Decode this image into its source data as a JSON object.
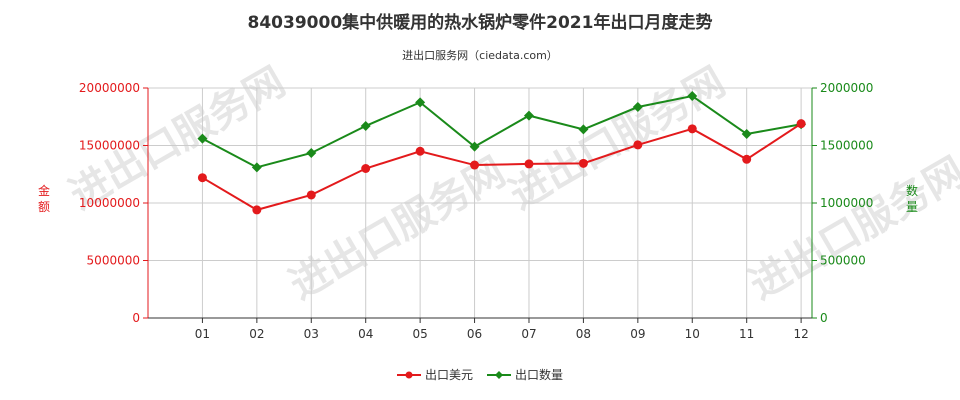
{
  "title": "84039000集中供暖用的热水锅炉零件2021年出口月度走势",
  "subtitle": "进出口服务网（ciedata.com）",
  "watermark": "进出口服务网",
  "colors": {
    "value": "#e31a1c",
    "quantity": "#1a8a1a",
    "grid": "#cccccc",
    "axis": "#333333"
  },
  "chart_data": {
    "type": "line",
    "categories": [
      "01",
      "02",
      "03",
      "04",
      "05",
      "06",
      "07",
      "08",
      "09",
      "10",
      "11",
      "12"
    ],
    "series": [
      {
        "name": "出口美元",
        "axis": "left",
        "values": [
          12200000,
          9400000,
          10700000,
          13000000,
          14500000,
          13300000,
          13400000,
          13450000,
          15050000,
          16450000,
          13800000,
          16900000
        ]
      },
      {
        "name": "出口数量",
        "axis": "right",
        "values": [
          1560000,
          1310000,
          1435000,
          1670000,
          1875000,
          1490000,
          1760000,
          1640000,
          1835000,
          1930000,
          1600000,
          1685000
        ]
      }
    ],
    "y_left": {
      "label": "金额",
      "min": 0,
      "max": 20000000,
      "ticks": [
        "0",
        "5000000",
        "10000000",
        "15000000",
        "20000000"
      ]
    },
    "y_right": {
      "label": "数量",
      "min": 0,
      "max": 2000000,
      "ticks": [
        "0",
        "500000",
        "1000000",
        "1500000",
        "2000000"
      ]
    },
    "grid": true,
    "legend_position": "bottom-center"
  }
}
